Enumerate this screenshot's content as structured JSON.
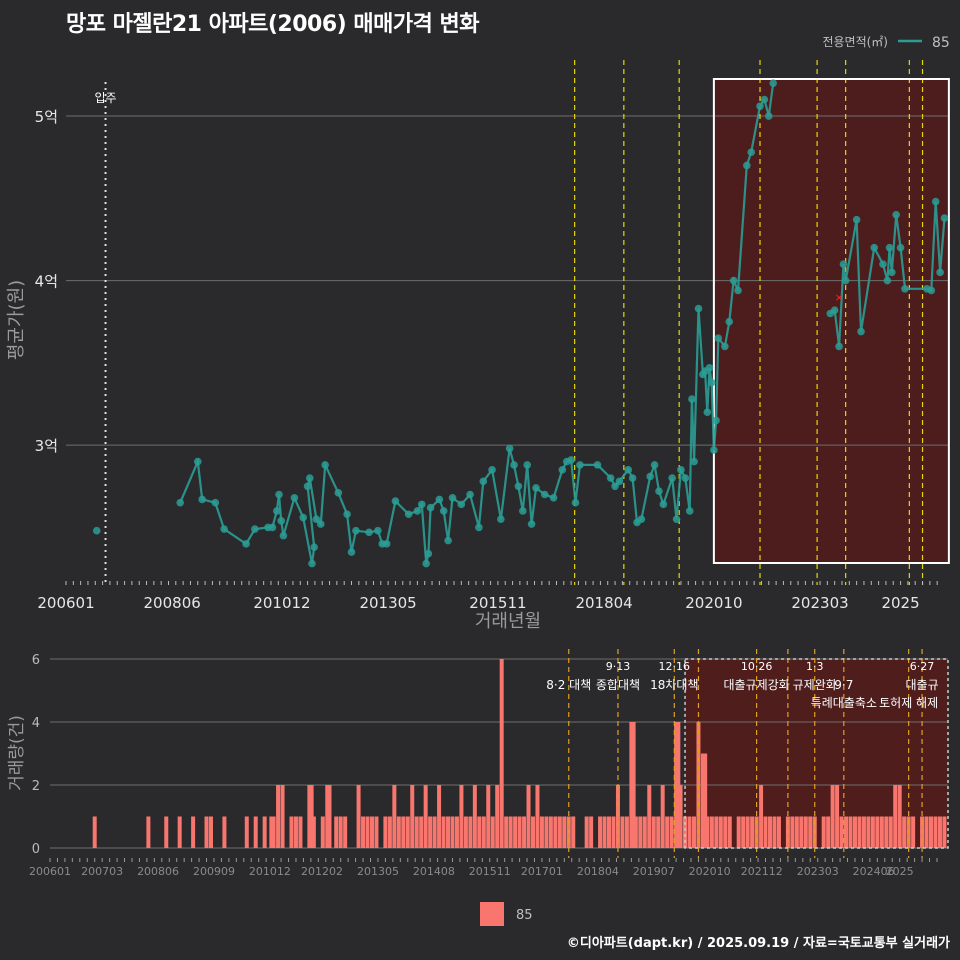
{
  "title": "망포 마젤란21 아파트(2006) 매매가격 변화",
  "footer": "©디아파트(dapt.kr) / 2025.09.19 / 자료=국토교통부 실거래가",
  "colors": {
    "background": "#2a2a2c",
    "line": "#2a9d95",
    "bar": "#f8766d",
    "highlight": "#5a1a1a",
    "policy_line": "#e6d800",
    "gridline": "#6e6e6e"
  },
  "chart_data": [
    {
      "type": "line",
      "ylabel": "평균가(원)",
      "xlabel": "거래년월",
      "x_ticks": [
        "200601",
        "200806",
        "201012",
        "201305",
        "201511",
        "201804",
        "202010",
        "202303",
        "2025"
      ],
      "y_ticks": [
        "3억",
        "4억",
        "5억"
      ],
      "ylim": [
        2.15,
        5.45
      ],
      "y_unit": "억",
      "legend": {
        "title": "전용면적(㎡)",
        "entries": [
          "85"
        ],
        "position": "top-right"
      },
      "annotation": "입주",
      "highlight_range": [
        "2020.09",
        "2025.06"
      ],
      "cancelled_marker": {
        "x": 2023.6,
        "y": 3.9
      },
      "policy_lines_x": [
        2017.58,
        2018.7,
        2019.96,
        2021.8,
        2023.1,
        2023.75,
        2025.2,
        2025.5
      ],
      "series": [
        {
          "name": "85",
          "points": [
            [
              2006.7,
              2.48
            ],
            [
              2008.6,
              2.65
            ],
            [
              2009.0,
              2.9
            ],
            [
              2009.1,
              2.67
            ],
            [
              2009.4,
              2.65
            ],
            [
              2009.6,
              2.49
            ],
            [
              2010.1,
              2.4
            ],
            [
              2010.3,
              2.49
            ],
            [
              2010.6,
              2.5
            ],
            [
              2010.7,
              2.5
            ],
            [
              2010.8,
              2.6
            ],
            [
              2010.85,
              2.7
            ],
            [
              2010.9,
              2.54
            ],
            [
              2010.95,
              2.45
            ],
            [
              2011.2,
              2.68
            ],
            [
              2011.4,
              2.56
            ],
            [
              2011.6,
              2.28
            ],
            [
              2011.65,
              2.38
            ],
            [
              2011.5,
              2.75
            ],
            [
              2011.55,
              2.8
            ],
            [
              2011.7,
              2.55
            ],
            [
              2011.8,
              2.52
            ],
            [
              2011.9,
              2.88
            ],
            [
              2012.2,
              2.71
            ],
            [
              2012.4,
              2.58
            ],
            [
              2012.5,
              2.35
            ],
            [
              2012.6,
              2.48
            ],
            [
              2012.9,
              2.47
            ],
            [
              2013.1,
              2.48
            ],
            [
              2013.2,
              2.4
            ],
            [
              2013.3,
              2.4
            ],
            [
              2013.5,
              2.66
            ],
            [
              2013.8,
              2.58
            ],
            [
              2014.0,
              2.6
            ],
            [
              2014.1,
              2.64
            ],
            [
              2014.2,
              2.28
            ],
            [
              2014.25,
              2.34
            ],
            [
              2014.3,
              2.62
            ],
            [
              2014.5,
              2.67
            ],
            [
              2014.6,
              2.6
            ],
            [
              2014.7,
              2.42
            ],
            [
              2014.8,
              2.68
            ],
            [
              2015.0,
              2.64
            ],
            [
              2015.2,
              2.7
            ],
            [
              2015.4,
              2.5
            ],
            [
              2015.5,
              2.78
            ],
            [
              2015.7,
              2.85
            ],
            [
              2015.9,
              2.55
            ],
            [
              2016.1,
              2.98
            ],
            [
              2016.2,
              2.88
            ],
            [
              2016.3,
              2.75
            ],
            [
              2016.4,
              2.6
            ],
            [
              2016.5,
              2.88
            ],
            [
              2016.6,
              2.52
            ],
            [
              2016.7,
              2.74
            ],
            [
              2016.9,
              2.7
            ],
            [
              2017.1,
              2.68
            ],
            [
              2017.3,
              2.85
            ],
            [
              2017.4,
              2.9
            ],
            [
              2017.5,
              2.91
            ],
            [
              2017.6,
              2.65
            ],
            [
              2017.7,
              2.88
            ],
            [
              2018.1,
              2.88
            ],
            [
              2018.4,
              2.8
            ],
            [
              2018.5,
              2.75
            ],
            [
              2018.6,
              2.78
            ],
            [
              2018.8,
              2.85
            ],
            [
              2018.9,
              2.8
            ],
            [
              2019.0,
              2.53
            ],
            [
              2019.1,
              2.55
            ],
            [
              2019.3,
              2.81
            ],
            [
              2019.4,
              2.88
            ],
            [
              2019.5,
              2.72
            ],
            [
              2019.6,
              2.64
            ],
            [
              2019.8,
              2.8
            ],
            [
              2019.9,
              2.55
            ],
            [
              2020.0,
              2.85
            ],
            [
              2020.1,
              2.8
            ],
            [
              2020.2,
              2.6
            ],
            [
              2020.25,
              3.28
            ],
            [
              2020.3,
              2.9
            ],
            [
              2020.4,
              3.83
            ],
            [
              2020.5,
              3.43
            ],
            [
              2020.55,
              3.45
            ],
            [
              2020.6,
              3.2
            ],
            [
              2020.65,
              3.47
            ],
            [
              2020.7,
              3.38
            ],
            [
              2020.75,
              2.97
            ],
            [
              2020.8,
              3.15
            ],
            [
              2020.85,
              3.65
            ],
            [
              2021.0,
              3.6
            ],
            [
              2021.1,
              3.75
            ],
            [
              2021.2,
              4.0
            ],
            [
              2021.3,
              3.94
            ],
            [
              2021.5,
              4.7
            ],
            [
              2021.6,
              4.78
            ],
            [
              2021.8,
              5.06
            ],
            [
              2021.9,
              5.1
            ],
            [
              2022.0,
              5.0
            ],
            [
              2022.1,
              5.2
            ],
            [
              2023.4,
              3.8
            ],
            [
              2023.5,
              3.82
            ],
            [
              2023.6,
              3.6
            ],
            [
              2023.7,
              4.1
            ],
            [
              2023.75,
              4.0
            ],
            [
              2024.0,
              4.37
            ],
            [
              2024.1,
              3.69
            ],
            [
              2024.4,
              4.2
            ],
            [
              2024.6,
              4.1
            ],
            [
              2024.7,
              4.0
            ],
            [
              2024.75,
              4.2
            ],
            [
              2024.8,
              4.05
            ],
            [
              2024.9,
              4.4
            ],
            [
              2025.0,
              4.2
            ],
            [
              2025.1,
              3.95
            ],
            [
              2025.6,
              3.95
            ],
            [
              2025.7,
              3.94
            ],
            [
              2025.8,
              4.48
            ],
            [
              2025.9,
              4.05
            ],
            [
              2026.0,
              4.38
            ]
          ]
        }
      ]
    },
    {
      "type": "bar",
      "ylabel": "거래량(건)",
      "x_ticks": [
        "200601",
        "200703",
        "200806",
        "200909",
        "201012",
        "201202",
        "201305",
        "201408",
        "201511",
        "201701",
        "201804",
        "201907",
        "202010",
        "202112",
        "202303",
        "202406",
        "2025"
      ],
      "y_ticks": [
        "0",
        "2",
        "4",
        "6"
      ],
      "ylim": [
        0,
        6
      ],
      "legend": {
        "entries": [
          "85"
        ],
        "position": "bottom"
      },
      "highlight_range": [
        "2020.09",
        "2025.06"
      ],
      "policy_lines_x": [
        2017.6,
        2018.7,
        2019.96,
        2020.5,
        2021.8,
        2022.5,
        2023.1,
        2023.75,
        2025.2,
        2025.5
      ],
      "policy_labels": [
        {
          "text": "8·2 대책",
          "x": 2017.6,
          "row": 1
        },
        {
          "text": "9·13",
          "x": 2018.7,
          "row": 0
        },
        {
          "text": "종합대책",
          "x": 2018.7,
          "row": 1
        },
        {
          "text": "12·16",
          "x": 2019.96,
          "row": 0
        },
        {
          "text": "18차대책",
          "x": 2019.96,
          "row": 1
        },
        {
          "text": "10·26",
          "x": 2021.8,
          "row": 0
        },
        {
          "text": "대출규제강화",
          "x": 2021.8,
          "row": 1
        },
        {
          "text": "1·3",
          "x": 2023.1,
          "row": 0
        },
        {
          "text": "규제완화",
          "x": 2023.1,
          "row": 1
        },
        {
          "text": "9·7",
          "x": 2023.75,
          "row": 1
        },
        {
          "text": "특례대출축소",
          "x": 2023.75,
          "row": 2
        },
        {
          "text": "토허제 해제",
          "x": 2025.2,
          "row": 2
        },
        {
          "text": "6·27",
          "x": 2025.5,
          "row": 0
        },
        {
          "text": "대출규",
          "x": 2025.5,
          "row": 1
        }
      ],
      "bars": [
        [
          2007.0,
          1
        ],
        [
          2008.2,
          1
        ],
        [
          2008.6,
          1
        ],
        [
          2008.9,
          1
        ],
        [
          2009.2,
          1
        ],
        [
          2009.5,
          1
        ],
        [
          2009.6,
          1
        ],
        [
          2009.9,
          1
        ],
        [
          2010.4,
          1
        ],
        [
          2010.6,
          1
        ],
        [
          2010.8,
          1
        ],
        [
          2010.95,
          1
        ],
        [
          2011.0,
          1
        ],
        [
          2011.1,
          2
        ],
        [
          2011.2,
          2
        ],
        [
          2011.4,
          1
        ],
        [
          2011.5,
          1
        ],
        [
          2011.6,
          1
        ],
        [
          2011.8,
          2
        ],
        [
          2011.85,
          2
        ],
        [
          2011.9,
          1
        ],
        [
          2012.1,
          1
        ],
        [
          2012.2,
          2
        ],
        [
          2012.25,
          2
        ],
        [
          2012.4,
          1
        ],
        [
          2012.5,
          1
        ],
        [
          2012.6,
          1
        ],
        [
          2012.9,
          2
        ],
        [
          2013.0,
          1
        ],
        [
          2013.1,
          1
        ],
        [
          2013.2,
          1
        ],
        [
          2013.3,
          1
        ],
        [
          2013.5,
          1
        ],
        [
          2013.6,
          1
        ],
        [
          2013.7,
          2
        ],
        [
          2013.8,
          1
        ],
        [
          2013.9,
          1
        ],
        [
          2014.0,
          1
        ],
        [
          2014.1,
          2
        ],
        [
          2014.2,
          1
        ],
        [
          2014.3,
          1
        ],
        [
          2014.4,
          2
        ],
        [
          2014.5,
          1
        ],
        [
          2014.6,
          1
        ],
        [
          2014.7,
          2
        ],
        [
          2014.8,
          1
        ],
        [
          2014.9,
          1
        ],
        [
          2015.0,
          1
        ],
        [
          2015.1,
          1
        ],
        [
          2015.2,
          2
        ],
        [
          2015.3,
          1
        ],
        [
          2015.4,
          1
        ],
        [
          2015.5,
          2
        ],
        [
          2015.6,
          1
        ],
        [
          2015.7,
          1
        ],
        [
          2015.8,
          2
        ],
        [
          2015.9,
          1
        ],
        [
          2016.0,
          2
        ],
        [
          2016.1,
          6
        ],
        [
          2016.2,
          1
        ],
        [
          2016.3,
          1
        ],
        [
          2016.4,
          1
        ],
        [
          2016.5,
          1
        ],
        [
          2016.6,
          1
        ],
        [
          2016.7,
          2
        ],
        [
          2016.8,
          1
        ],
        [
          2016.9,
          2
        ],
        [
          2017.0,
          1
        ],
        [
          2017.1,
          1
        ],
        [
          2017.2,
          1
        ],
        [
          2017.3,
          1
        ],
        [
          2017.4,
          1
        ],
        [
          2017.5,
          1
        ],
        [
          2017.6,
          1
        ],
        [
          2017.7,
          1
        ],
        [
          2018.0,
          1
        ],
        [
          2018.1,
          1
        ],
        [
          2018.3,
          1
        ],
        [
          2018.4,
          1
        ],
        [
          2018.5,
          1
        ],
        [
          2018.6,
          1
        ],
        [
          2018.7,
          2
        ],
        [
          2018.8,
          1
        ],
        [
          2018.9,
          1
        ],
        [
          2019.0,
          4
        ],
        [
          2019.05,
          4
        ],
        [
          2019.1,
          1
        ],
        [
          2019.2,
          1
        ],
        [
          2019.3,
          1
        ],
        [
          2019.4,
          2
        ],
        [
          2019.5,
          1
        ],
        [
          2019.6,
          1
        ],
        [
          2019.7,
          2
        ],
        [
          2019.8,
          1
        ],
        [
          2019.9,
          1
        ],
        [
          2020.0,
          4
        ],
        [
          2020.05,
          4
        ],
        [
          2020.1,
          2
        ],
        [
          2020.2,
          1
        ],
        [
          2020.3,
          1
        ],
        [
          2020.4,
          1
        ],
        [
          2020.5,
          4
        ],
        [
          2020.6,
          3
        ],
        [
          2020.65,
          3
        ],
        [
          2020.7,
          1
        ],
        [
          2020.8,
          1
        ],
        [
          2020.9,
          1
        ],
        [
          2021.0,
          1
        ],
        [
          2021.1,
          1
        ],
        [
          2021.2,
          1
        ],
        [
          2021.4,
          1
        ],
        [
          2021.5,
          1
        ],
        [
          2021.6,
          1
        ],
        [
          2021.7,
          1
        ],
        [
          2021.8,
          1
        ],
        [
          2021.9,
          2
        ],
        [
          2022.0,
          1
        ],
        [
          2022.1,
          1
        ],
        [
          2022.2,
          1
        ],
        [
          2022.3,
          1
        ],
        [
          2022.5,
          1
        ],
        [
          2022.6,
          1
        ],
        [
          2022.7,
          1
        ],
        [
          2022.8,
          1
        ],
        [
          2022.9,
          1
        ],
        [
          2023.0,
          1
        ],
        [
          2023.1,
          1
        ],
        [
          2023.3,
          1
        ],
        [
          2023.4,
          1
        ],
        [
          2023.5,
          2
        ],
        [
          2023.6,
          2
        ],
        [
          2023.7,
          1
        ],
        [
          2023.8,
          1
        ],
        [
          2023.9,
          1
        ],
        [
          2024.0,
          1
        ],
        [
          2024.1,
          1
        ],
        [
          2024.2,
          1
        ],
        [
          2024.3,
          1
        ],
        [
          2024.4,
          1
        ],
        [
          2024.5,
          1
        ],
        [
          2024.6,
          1
        ],
        [
          2024.7,
          1
        ],
        [
          2024.8,
          1
        ],
        [
          2024.9,
          2
        ],
        [
          2025.0,
          2
        ],
        [
          2025.1,
          1
        ],
        [
          2025.2,
          1
        ],
        [
          2025.3,
          1
        ],
        [
          2025.5,
          1
        ],
        [
          2025.6,
          1
        ],
        [
          2025.7,
          1
        ],
        [
          2025.8,
          1
        ],
        [
          2025.9,
          1
        ],
        [
          2026.0,
          1
        ]
      ]
    }
  ]
}
